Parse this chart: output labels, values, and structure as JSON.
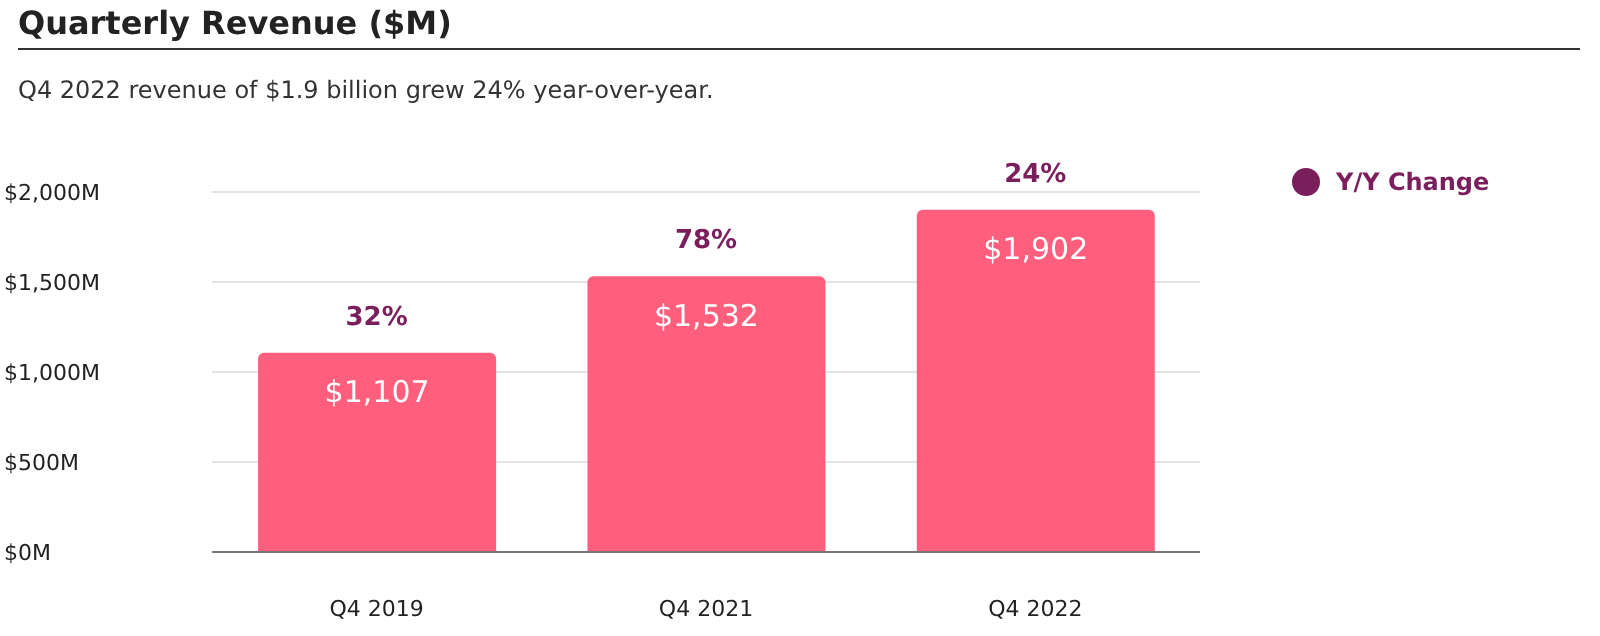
{
  "chart_data": {
    "type": "bar",
    "title": "Quarterly Revenue ($M)",
    "subtitle": "Q4 2022 revenue of $1.9 billion grew 24% year-over-year.",
    "categories": [
      "Q4 2019",
      "Q4 2021",
      "Q4 2022"
    ],
    "series": [
      {
        "color": "#ff5f7d",
        "values": [
          1107,
          1532,
          1902
        ],
        "value_labels": [
          "$1,107",
          "$1,532",
          "$1,902"
        ]
      }
    ],
    "annotations": [
      {
        "text": "32%",
        "x": "Q4 2019",
        "y": 1107
      },
      {
        "text": "78%",
        "x": "Q4 2021",
        "y": 1532
      },
      {
        "text": "24%",
        "x": "Q4 2022",
        "y": 1902
      }
    ],
    "legend_title": "Y/Y Change",
    "ylim": [
      0,
      2000
    ],
    "yticks": [
      {
        "value": 0,
        "label": "$0M"
      },
      {
        "value": 500,
        "label": "$500M"
      },
      {
        "value": 1000,
        "label": "$1,000M"
      },
      {
        "value": 1500,
        "label": "$1,500M"
      },
      {
        "value": 2000,
        "label": "$2,000M"
      }
    ],
    "grid": "y"
  }
}
